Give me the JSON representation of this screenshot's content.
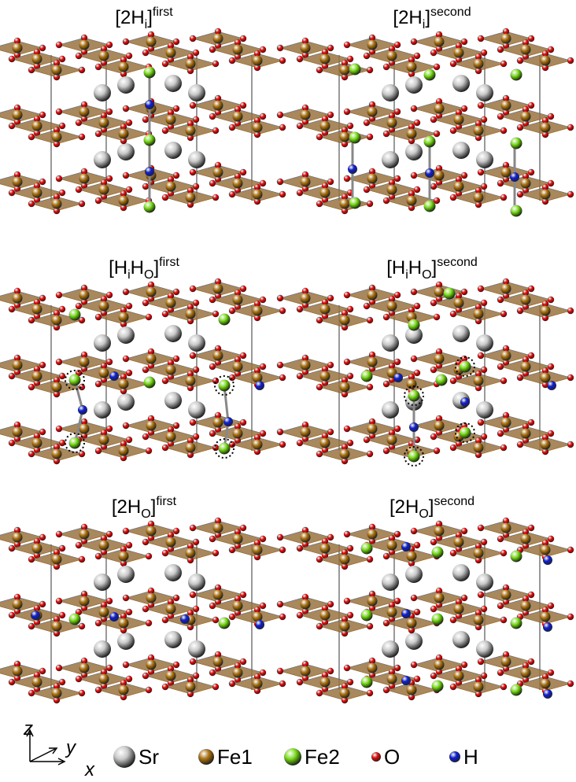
{
  "panels": [
    {
      "title": [
        {
          "text": "[2H"
        },
        {
          "text": "i",
          "style": "sub"
        },
        {
          "text": "]"
        },
        {
          "text": "first",
          "style": "sup"
        }
      ]
    },
    {
      "title": [
        {
          "text": "[2H"
        },
        {
          "text": "i",
          "style": "sub"
        },
        {
          "text": "]"
        },
        {
          "text": "second",
          "style": "sup"
        }
      ]
    },
    {
      "title": [
        {
          "text": "[H"
        },
        {
          "text": "i",
          "style": "sub"
        },
        {
          "text": "H"
        },
        {
          "text": "O",
          "style": "sub"
        },
        {
          "text": "]"
        },
        {
          "text": "first",
          "style": "sup"
        }
      ]
    },
    {
      "title": [
        {
          "text": "[H"
        },
        {
          "text": "i",
          "style": "sub"
        },
        {
          "text": "H"
        },
        {
          "text": "O",
          "style": "sub"
        },
        {
          "text": "]"
        },
        {
          "text": "second",
          "style": "sup"
        }
      ]
    },
    {
      "title": [
        {
          "text": "[2H"
        },
        {
          "text": "O",
          "style": "sub"
        },
        {
          "text": "]"
        },
        {
          "text": "first",
          "style": "sup"
        }
      ]
    },
    {
      "title": [
        {
          "text": "[2H"
        },
        {
          "text": "O",
          "style": "sub"
        },
        {
          "text": "]"
        },
        {
          "text": "second",
          "style": "sup"
        }
      ]
    }
  ],
  "legend": [
    {
      "label": "Sr",
      "color": "#c8c8c8"
    },
    {
      "label": "Fe1",
      "color": "#b07818"
    },
    {
      "label": "Fe2",
      "color": "#7ee020"
    },
    {
      "label": "O",
      "color": "#e01010"
    },
    {
      "label": "H",
      "color": "#1020d0"
    }
  ],
  "axes": {
    "z": "z",
    "y": "y",
    "x": "x"
  }
}
